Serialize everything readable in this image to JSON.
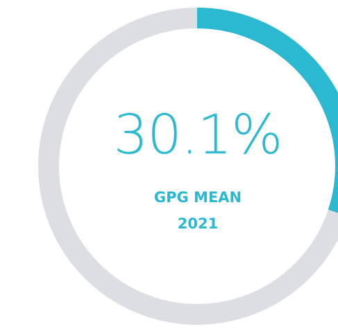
{
  "chart_data": {
    "type": "donut",
    "values": [
      30.1
    ],
    "value_labels": [
      "30.1%"
    ],
    "ylim": [
      0,
      100
    ],
    "label": "GPG MEAN",
    "subtitle": "2021",
    "color": "#2bb8d1",
    "track_color": "#dcdee3"
  }
}
